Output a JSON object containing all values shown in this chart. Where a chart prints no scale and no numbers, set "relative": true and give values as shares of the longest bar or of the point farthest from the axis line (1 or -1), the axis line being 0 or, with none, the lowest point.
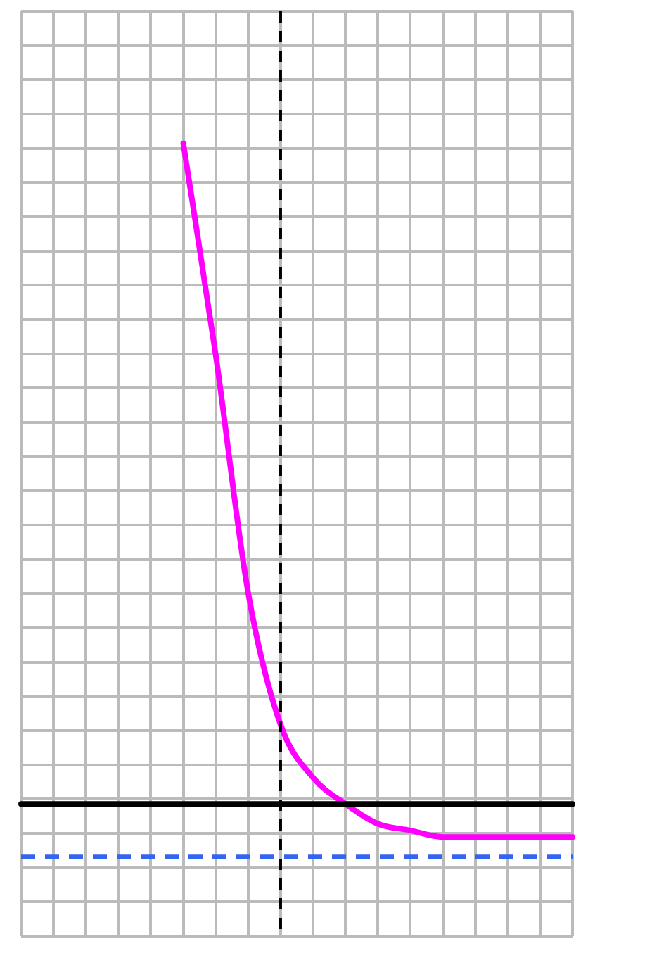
{
  "chart_data": {
    "type": "line",
    "relative": true,
    "tick_labels": false,
    "grid": true,
    "legend": false,
    "categories": [
      null,
      null,
      null,
      null,
      null,
      null,
      null,
      null,
      null,
      null,
      null,
      null,
      null,
      null,
      null,
      null,
      null,
      null
    ],
    "series": [
      {
        "color": "#ff00ff",
        "values": [
          null,
          null,
          null,
          null,
          null,
          1,
          0.68,
          0.32,
          0.12,
          0.04,
          0,
          -0.03,
          -0.04,
          -0.05,
          -0.05,
          -0.05,
          -0.05,
          -0.05
        ]
      }
    ],
    "ref_lines": [
      {
        "axis": "y",
        "value": -0.08,
        "color": "#3366ee",
        "line_style": "dashed"
      }
    ]
  }
}
